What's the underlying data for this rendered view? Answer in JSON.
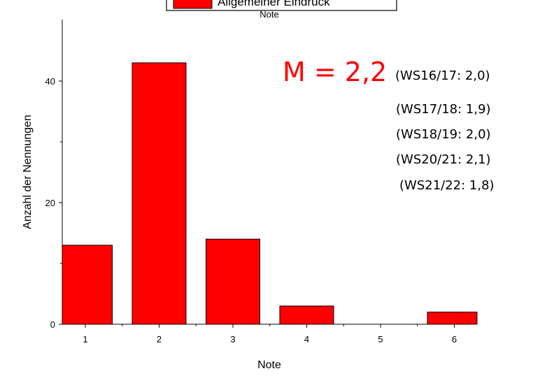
{
  "chart_data": {
    "type": "bar",
    "legend": {
      "label": "Allgemeiner Eindruck",
      "color": "#ff0000",
      "placement": "top-center"
    },
    "plot_title": "Note",
    "categories": [
      "1",
      "2",
      "3",
      "4",
      "5",
      "6"
    ],
    "values": [
      13,
      43,
      14,
      3,
      0,
      2
    ],
    "xlabel": "Note",
    "ylabel": "Anzahl der Nennungen",
    "ylim": [
      0,
      50
    ],
    "yticks": [
      0,
      20,
      40
    ],
    "grid": false,
    "bar_color": "#ff0000",
    "annotations": {
      "mean": "M = 2,2",
      "mean_color": "#ff0000",
      "history": [
        "(WS16/17: 2,0)",
        "(WS17/18: 1,9)",
        "(WS18/19: 2,0)",
        "(WS20/21: 2,1)",
        "(WS21/22: 1,8)"
      ]
    }
  }
}
